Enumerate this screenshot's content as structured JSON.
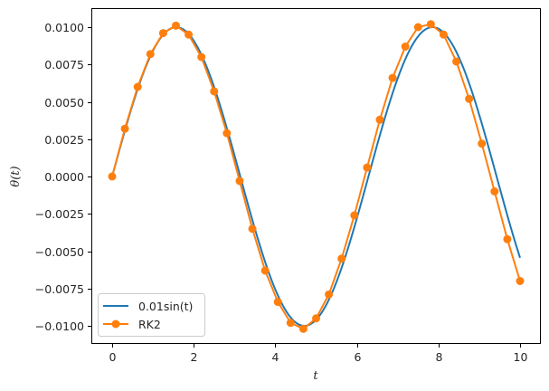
{
  "chart_data": {
    "type": "line",
    "title": "",
    "xlabel": "t",
    "ylabel": "θ(t)",
    "xlim": [
      -0.5,
      10.5
    ],
    "ylim": [
      -0.01115,
      0.01127
    ],
    "grid": false,
    "legend_position": "lower left",
    "xticks": [
      0,
      2,
      4,
      6,
      8,
      10
    ],
    "xtick_labels": [
      "0",
      "2",
      "4",
      "6",
      "8",
      "10"
    ],
    "yticks": [
      -0.01,
      -0.0075,
      -0.005,
      -0.0025,
      0.0,
      0.0025,
      0.005,
      0.0075,
      0.01
    ],
    "ytick_labels": [
      "−0.0100",
      "−0.0075",
      "−0.0050",
      "−0.0025",
      "0.0000",
      "0.0025",
      "0.0050",
      "0.0075",
      "0.0100"
    ],
    "series": [
      {
        "name": "0.01sin(t)",
        "legend_label": "0.01sin(t)",
        "color": "#1f77b4",
        "style": "line",
        "function": "0.01*sin(t)",
        "x_range": [
          0,
          10
        ]
      },
      {
        "name": "RK2",
        "legend_label": "RK2",
        "color": "#ff7f0e",
        "style": "line-marker",
        "x": [
          0.0,
          0.3125,
          0.625,
          0.9375,
          1.25,
          1.5625,
          1.875,
          2.1875,
          2.5,
          2.8125,
          3.125,
          3.4375,
          3.75,
          4.0625,
          4.375,
          4.6875,
          5.0,
          5.3125,
          5.625,
          5.9375,
          6.25,
          6.5625,
          6.875,
          7.1875,
          7.5,
          7.8125,
          8.125,
          8.4375,
          8.75,
          9.0625,
          9.375,
          9.6875,
          10.0
        ],
        "values": [
          0.0,
          0.0032,
          0.006,
          0.0082,
          0.0096,
          0.0101,
          0.0095,
          0.008,
          0.0057,
          0.0029,
          -0.0003,
          -0.0035,
          -0.0063,
          -0.0084,
          -0.0098,
          -0.0102,
          -0.0095,
          -0.0079,
          -0.0055,
          -0.0026,
          0.0006,
          0.0038,
          0.0066,
          0.0087,
          0.01,
          0.0102,
          0.0095,
          0.0077,
          0.0052,
          0.0022,
          -0.001,
          -0.0042,
          -0.007
        ]
      }
    ]
  },
  "legend": {
    "items": [
      {
        "label": "0.01sin(t)",
        "color": "#1f77b4"
      },
      {
        "label": "RK2",
        "color": "#ff7f0e"
      }
    ]
  },
  "labels": {
    "xlabel": "t",
    "ylabel": "θ(t)"
  }
}
